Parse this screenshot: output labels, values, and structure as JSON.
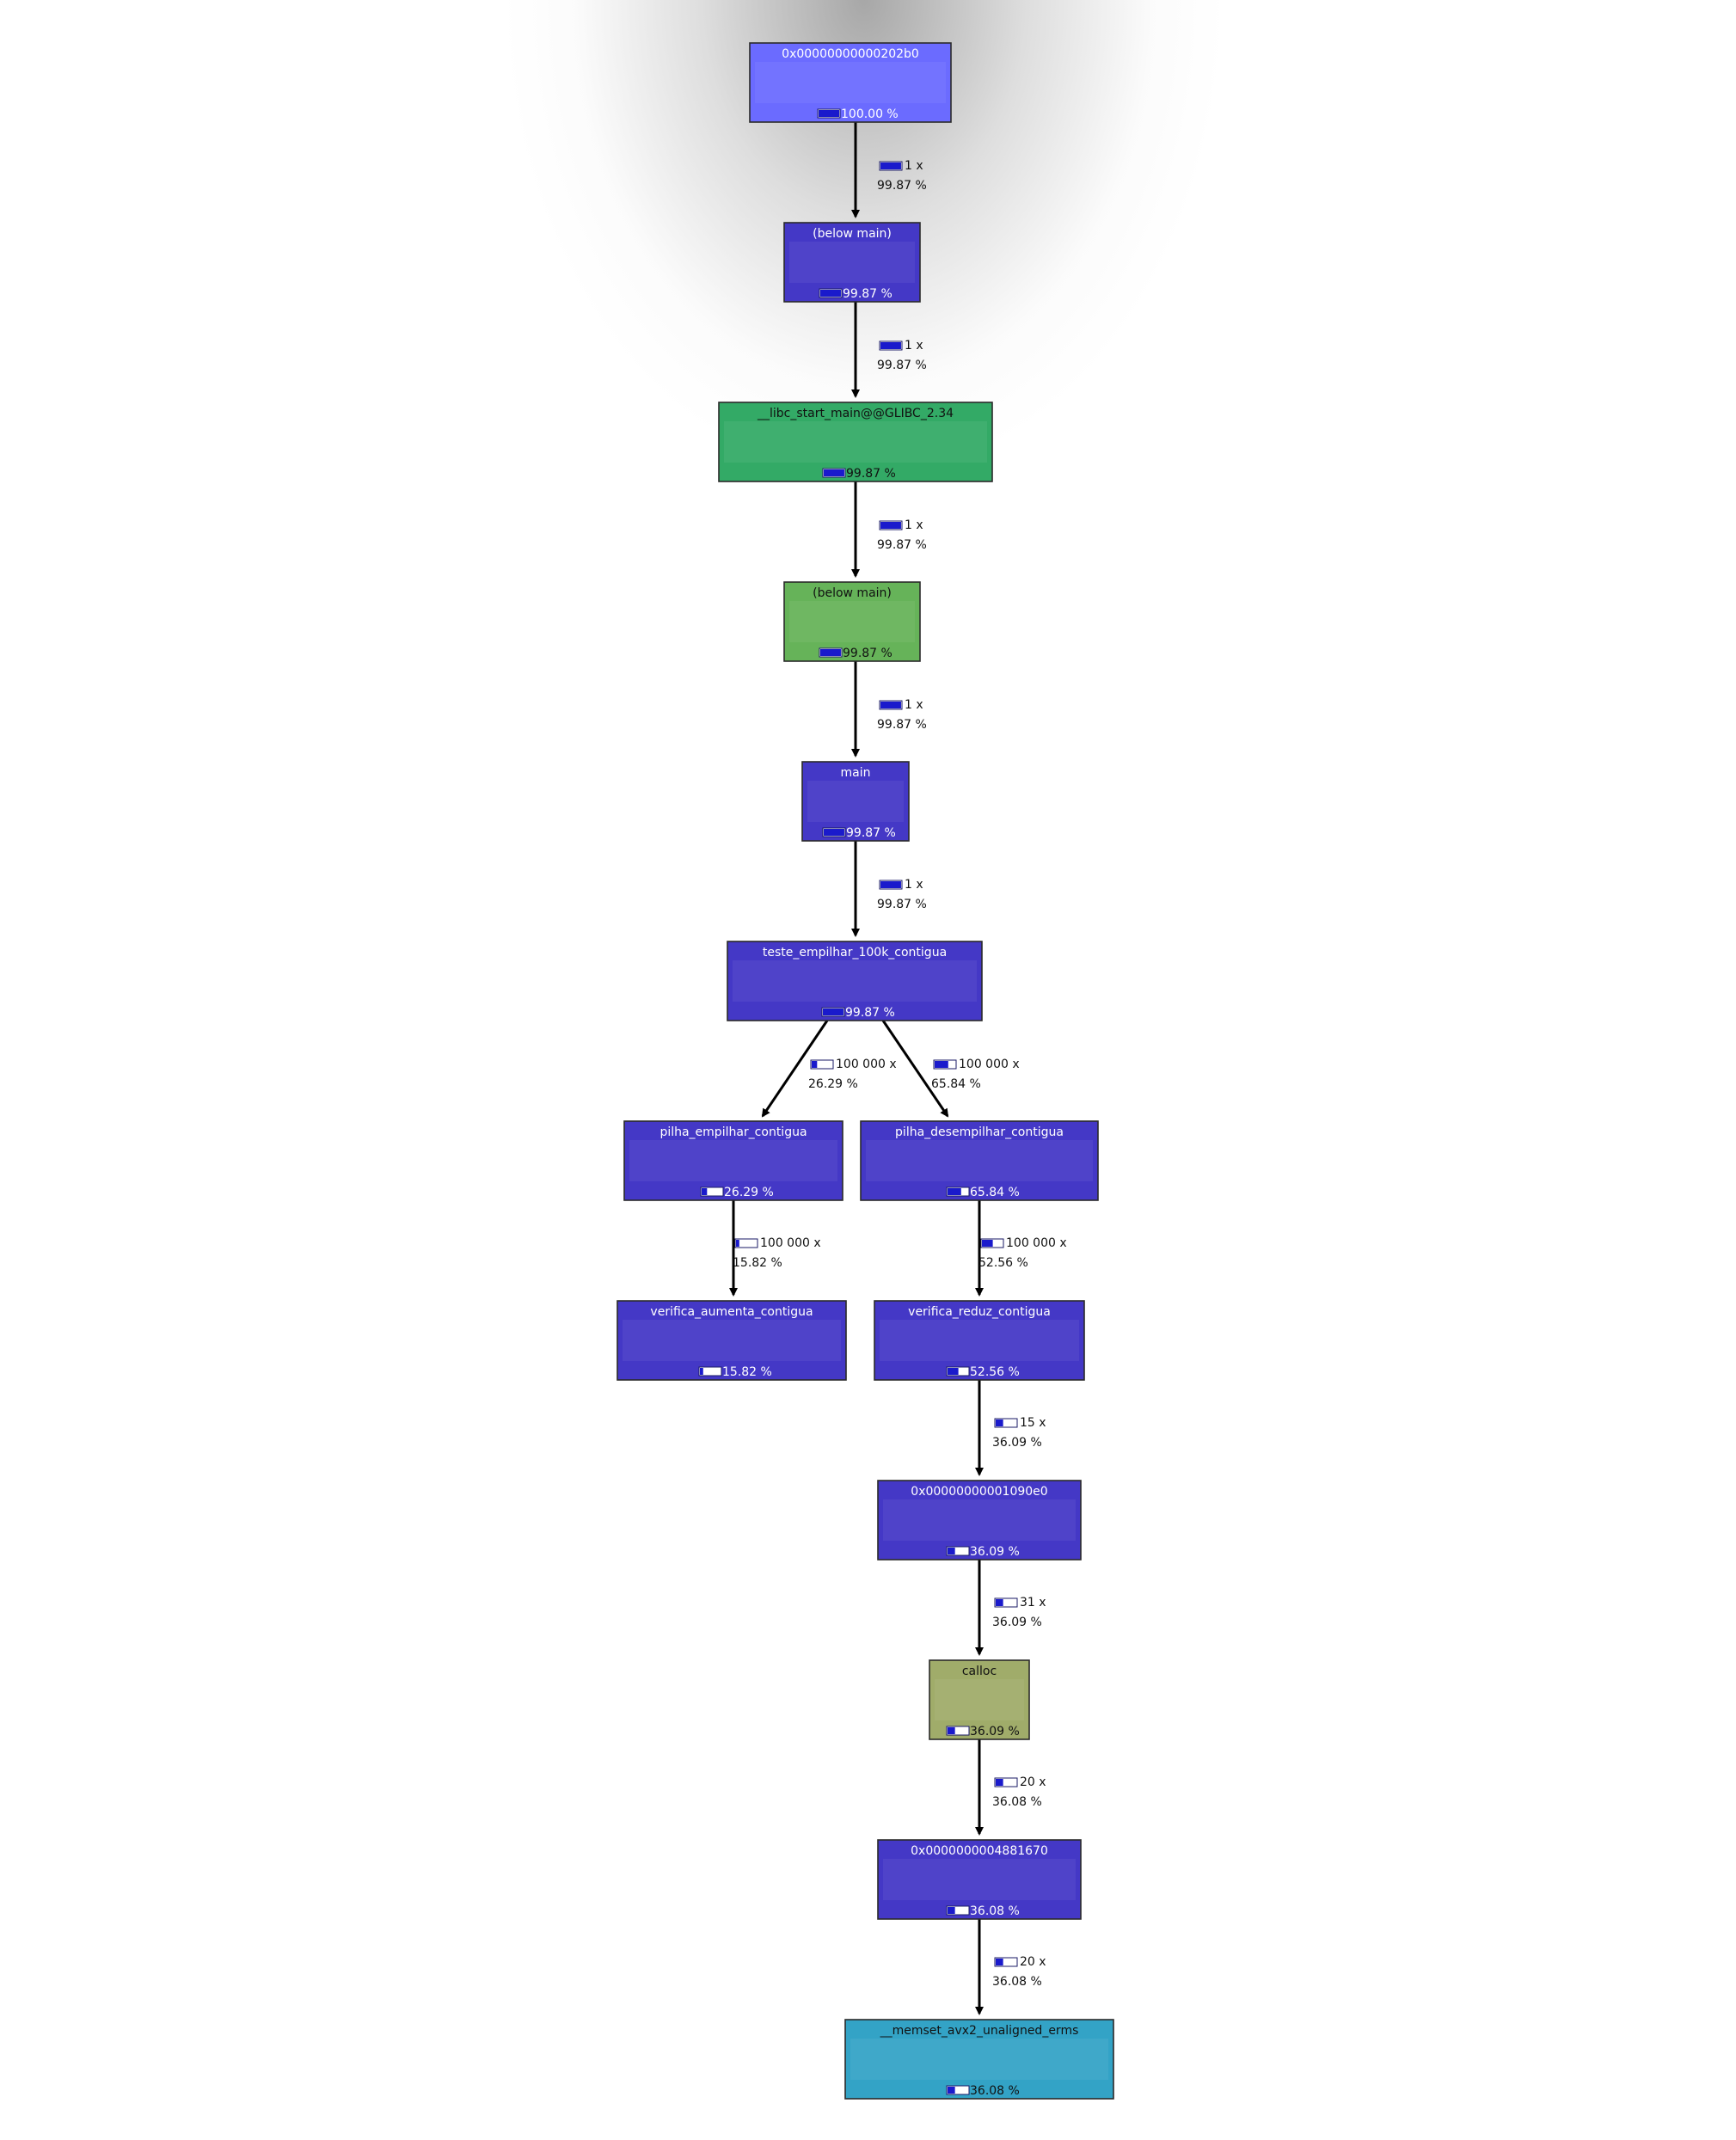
{
  "colors": {
    "root_node": "#6b6bff",
    "root_border": "#e0314a",
    "function_node": "#4438c6",
    "libc_node": "#33aa66",
    "below_main_green": "#66b359",
    "calloc_node": "#a0ac6a",
    "memset_node": "#33a3c6",
    "bar_fill": "#1a1acc"
  },
  "nodes": [
    {
      "id": "n0",
      "label": "0x00000000000202b0",
      "cost": "100.00 %",
      "fraction": 1.0,
      "color": "root_node",
      "text_color": "#ffffff"
    },
    {
      "id": "n1",
      "label": "(below main)",
      "cost": "99.87 %",
      "fraction": 0.9987,
      "color": "function_node",
      "text_color": "#ffffff"
    },
    {
      "id": "n2",
      "label": "__libc_start_main@@GLIBC_2.34",
      "cost": "99.87 %",
      "fraction": 0.9987,
      "color": "libc_node",
      "text_color": "#111111"
    },
    {
      "id": "n3",
      "label": "(below main)",
      "cost": "99.87 %",
      "fraction": 0.9987,
      "color": "below_main_green",
      "text_color": "#111111"
    },
    {
      "id": "n4",
      "label": "main",
      "cost": "99.87 %",
      "fraction": 0.9987,
      "color": "function_node",
      "text_color": "#ffffff"
    },
    {
      "id": "n5",
      "label": "teste_empilhar_100k_contigua",
      "cost": "99.87 %",
      "fraction": 0.9987,
      "color": "function_node",
      "text_color": "#ffffff"
    },
    {
      "id": "n6",
      "label": "pilha_empilhar_contigua",
      "cost": "26.29 %",
      "fraction": 0.2629,
      "color": "function_node",
      "text_color": "#ffffff"
    },
    {
      "id": "n7",
      "label": "pilha_desempilhar_contigua",
      "cost": "65.84 %",
      "fraction": 0.6584,
      "color": "function_node",
      "text_color": "#ffffff"
    },
    {
      "id": "n8",
      "label": "verifica_aumenta_contigua",
      "cost": "15.82 %",
      "fraction": 0.1582,
      "color": "function_node",
      "text_color": "#ffffff"
    },
    {
      "id": "n9",
      "label": "verifica_reduz_contigua",
      "cost": "52.56 %",
      "fraction": 0.5256,
      "color": "function_node",
      "text_color": "#ffffff"
    },
    {
      "id": "n10",
      "label": "0x00000000001090e0",
      "cost": "36.09 %",
      "fraction": 0.3609,
      "color": "function_node",
      "text_color": "#ffffff"
    },
    {
      "id": "n11",
      "label": "calloc",
      "cost": "36.09 %",
      "fraction": 0.3609,
      "color": "calloc_node",
      "text_color": "#111111"
    },
    {
      "id": "n12",
      "label": "0x0000000004881670",
      "cost": "36.08 %",
      "fraction": 0.3608,
      "color": "function_node",
      "text_color": "#ffffff"
    },
    {
      "id": "n13",
      "label": "__memset_avx2_unaligned_erms",
      "cost": "36.08 %",
      "fraction": 0.3608,
      "color": "memset_node",
      "text_color": "#111111"
    }
  ],
  "edges": [
    {
      "from": "n0",
      "to": "n1",
      "calls": "1 x",
      "cost": "99.87 %",
      "fraction": 0.9987
    },
    {
      "from": "n1",
      "to": "n2",
      "calls": "1 x",
      "cost": "99.87 %",
      "fraction": 0.9987
    },
    {
      "from": "n2",
      "to": "n3",
      "calls": "1 x",
      "cost": "99.87 %",
      "fraction": 0.9987
    },
    {
      "from": "n3",
      "to": "n4",
      "calls": "1 x",
      "cost": "99.87 %",
      "fraction": 0.9987
    },
    {
      "from": "n4",
      "to": "n5",
      "calls": "1 x",
      "cost": "99.87 %",
      "fraction": 0.9987
    },
    {
      "from": "n5",
      "to": "n6",
      "calls": "100 000 x",
      "cost": "26.29 %",
      "fraction": 0.2629
    },
    {
      "from": "n5",
      "to": "n7",
      "calls": "100 000 x",
      "cost": "65.84 %",
      "fraction": 0.6584
    },
    {
      "from": "n6",
      "to": "n8",
      "calls": "100 000 x",
      "cost": "15.82 %",
      "fraction": 0.1582
    },
    {
      "from": "n7",
      "to": "n9",
      "calls": "100 000 x",
      "cost": "52.56 %",
      "fraction": 0.5256
    },
    {
      "from": "n9",
      "to": "n10",
      "calls": "15 x",
      "cost": "36.09 %",
      "fraction": 0.3609
    },
    {
      "from": "n10",
      "to": "n11",
      "calls": "31 x",
      "cost": "36.09 %",
      "fraction": 0.3609
    },
    {
      "from": "n11",
      "to": "n12",
      "calls": "20 x",
      "cost": "36.08 %",
      "fraction": 0.3608
    },
    {
      "from": "n12",
      "to": "n13",
      "calls": "20 x",
      "cost": "36.08 %",
      "fraction": 0.3608
    }
  ]
}
